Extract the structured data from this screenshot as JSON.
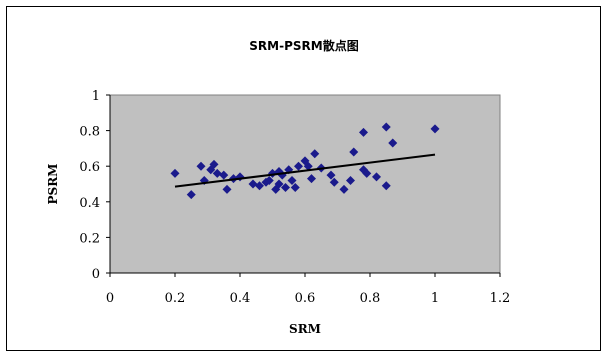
{
  "chart_data": {
    "type": "scatter",
    "title": "SRM-PSRM散点图",
    "xlabel": "SRM",
    "ylabel": "PSRM",
    "xlim": [
      0,
      1.2
    ],
    "ylim": [
      0,
      1
    ],
    "x_ticks": [
      "0",
      "0.2",
      "0.4",
      "0.6",
      "0.8",
      "1",
      "1.2"
    ],
    "y_ticks": [
      "0",
      "0.2",
      "0.4",
      "0.6",
      "0.8",
      "1"
    ],
    "grid": false,
    "plot_background": "#c0c0c0",
    "marker_color": "#1a1a8c",
    "trendline_color": "#000000",
    "trendline": {
      "x": [
        0.2,
        1.0
      ],
      "y": [
        0.485,
        0.665
      ]
    },
    "points": [
      [
        0.2,
        0.56
      ],
      [
        0.25,
        0.44
      ],
      [
        0.28,
        0.6
      ],
      [
        0.29,
        0.52
      ],
      [
        0.31,
        0.58
      ],
      [
        0.32,
        0.61
      ],
      [
        0.33,
        0.56
      ],
      [
        0.35,
        0.55
      ],
      [
        0.36,
        0.47
      ],
      [
        0.38,
        0.53
      ],
      [
        0.4,
        0.54
      ],
      [
        0.44,
        0.5
      ],
      [
        0.46,
        0.49
      ],
      [
        0.48,
        0.51
      ],
      [
        0.49,
        0.52
      ],
      [
        0.5,
        0.56
      ],
      [
        0.51,
        0.47
      ],
      [
        0.52,
        0.57
      ],
      [
        0.52,
        0.5
      ],
      [
        0.53,
        0.55
      ],
      [
        0.54,
        0.48
      ],
      [
        0.55,
        0.58
      ],
      [
        0.56,
        0.52
      ],
      [
        0.57,
        0.48
      ],
      [
        0.58,
        0.6
      ],
      [
        0.6,
        0.63
      ],
      [
        0.61,
        0.6
      ],
      [
        0.62,
        0.53
      ],
      [
        0.63,
        0.67
      ],
      [
        0.65,
        0.59
      ],
      [
        0.68,
        0.55
      ],
      [
        0.69,
        0.51
      ],
      [
        0.72,
        0.47
      ],
      [
        0.74,
        0.52
      ],
      [
        0.75,
        0.68
      ],
      [
        0.78,
        0.58
      ],
      [
        0.78,
        0.79
      ],
      [
        0.79,
        0.56
      ],
      [
        0.82,
        0.54
      ],
      [
        0.85,
        0.49
      ],
      [
        0.85,
        0.82
      ],
      [
        0.87,
        0.73
      ],
      [
        1.0,
        0.81
      ]
    ]
  }
}
